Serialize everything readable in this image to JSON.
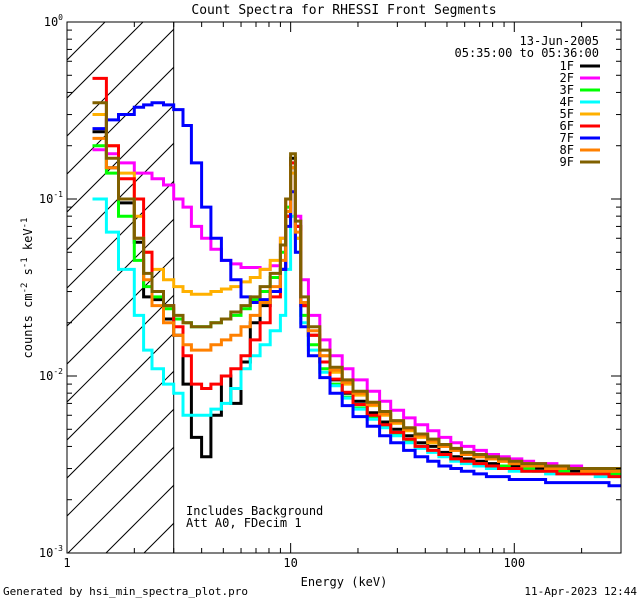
{
  "chart_data": {
    "type": "line",
    "title": "Count Spectra for RHESSI Front Segments",
    "xlabel": "Energy (keV)",
    "ylabel": "counts cm-2 s-1 keV-1",
    "xscale": "log",
    "yscale": "log",
    "xlim": [
      1,
      300
    ],
    "ylim": [
      0.001,
      1.0
    ],
    "x_tick_labels": [
      "1",
      "10",
      "100"
    ],
    "y_tick_labels": [
      {
        "value": 1,
        "base": "10",
        "exp": "0"
      },
      {
        "value": 0.1,
        "base": "10",
        "exp": "-1"
      },
      {
        "value": 0.01,
        "base": "10",
        "exp": "-2"
      },
      {
        "value": 0.001,
        "base": "10",
        "exp": "-3"
      }
    ],
    "date": "13-Jun-2005",
    "time_range": "05:35:00 to 05:36:00",
    "hatched_region_keV": [
      1,
      3
    ],
    "annotations": [
      "Includes Background",
      "Att A0, FDecim 1"
    ],
    "footer_left": "Generated by hsi_min_spectra_plot.pro",
    "footer_right": "11-Apr-2023 12:44",
    "energy_bins_keV": [
      1.3,
      1.5,
      1.7,
      2.0,
      2.2,
      2.4,
      2.7,
      3.0,
      3.3,
      3.6,
      4.0,
      4.4,
      4.9,
      5.4,
      6.0,
      6.6,
      7.3,
      8.1,
      9.0,
      9.5,
      10.0,
      10.5,
      11.1,
      12.0,
      13.5,
      15.0,
      17.0,
      19.0,
      22.0,
      25.0,
      28.0,
      32.0,
      36.0,
      41.0,
      46.0,
      52.0,
      58.0,
      66.0,
      75.0,
      85.0,
      95.0,
      108.0,
      122.0,
      138.0,
      155.0,
      175.0,
      200.0,
      230.0,
      265.0,
      300.0
    ],
    "series": [
      {
        "name": "1F",
        "color": "#000000",
        "values": [
          0.24,
          0.15,
          0.095,
          0.057,
          0.028,
          0.027,
          0.021,
          0.017,
          0.009,
          0.0045,
          0.0035,
          0.006,
          0.01,
          0.007,
          0.012,
          0.02,
          0.025,
          0.03,
          0.04,
          0.08,
          0.17,
          0.07,
          0.025,
          0.017,
          0.012,
          0.0095,
          0.008,
          0.0072,
          0.0062,
          0.0055,
          0.005,
          0.0046,
          0.0042,
          0.004,
          0.0037,
          0.0035,
          0.0034,
          0.0033,
          0.0032,
          0.0031,
          0.0031,
          0.003,
          0.003,
          0.003,
          0.0029,
          0.0029,
          0.0029,
          0.0028,
          0.0028,
          0.0028
        ]
      },
      {
        "name": "2F",
        "color": "#ff00ff",
        "values": [
          0.19,
          0.18,
          0.16,
          0.14,
          0.14,
          0.13,
          0.12,
          0.1,
          0.09,
          0.07,
          0.06,
          0.052,
          0.045,
          0.043,
          0.041,
          0.041,
          0.04,
          0.042,
          0.06,
          0.1,
          0.15,
          0.08,
          0.035,
          0.022,
          0.016,
          0.013,
          0.011,
          0.0095,
          0.0082,
          0.0072,
          0.0064,
          0.0058,
          0.0053,
          0.0049,
          0.0045,
          0.0042,
          0.004,
          0.0038,
          0.0036,
          0.0035,
          0.0034,
          0.0033,
          0.0032,
          0.0032,
          0.0031,
          0.0031,
          0.003,
          0.003,
          0.003,
          0.003
        ]
      },
      {
        "name": "3F",
        "color": "#00ff00",
        "values": [
          0.2,
          0.14,
          0.08,
          0.045,
          0.032,
          0.028,
          0.024,
          0.021,
          0.02,
          0.019,
          0.019,
          0.02,
          0.021,
          0.022,
          0.024,
          0.027,
          0.03,
          0.036,
          0.05,
          0.09,
          0.15,
          0.06,
          0.022,
          0.015,
          0.011,
          0.009,
          0.0076,
          0.0066,
          0.0058,
          0.0052,
          0.0047,
          0.0043,
          0.004,
          0.0038,
          0.0036,
          0.0034,
          0.0033,
          0.0032,
          0.0031,
          0.0031,
          0.003,
          0.003,
          0.0029,
          0.0029,
          0.0029,
          0.0028,
          0.0028,
          0.0028,
          0.0028,
          0.0028
        ]
      },
      {
        "name": "4F",
        "color": "#00ffff",
        "values": [
          0.1,
          0.065,
          0.04,
          0.022,
          0.014,
          0.011,
          0.009,
          0.008,
          0.006,
          0.006,
          0.006,
          0.0065,
          0.007,
          0.0085,
          0.011,
          0.013,
          0.015,
          0.018,
          0.022,
          0.04,
          0.08,
          0.05,
          0.02,
          0.014,
          0.0105,
          0.0088,
          0.0075,
          0.0065,
          0.0057,
          0.0051,
          0.0046,
          0.0042,
          0.0039,
          0.0037,
          0.0035,
          0.0033,
          0.0032,
          0.0031,
          0.003,
          0.003,
          0.0029,
          0.0029,
          0.0029,
          0.0028,
          0.0028,
          0.0028,
          0.0028,
          0.0027,
          0.0027,
          0.0027
        ]
      },
      {
        "name": "5F",
        "color": "#ffb000",
        "values": [
          0.3,
          0.2,
          0.14,
          0.08,
          0.05,
          0.04,
          0.035,
          0.032,
          0.03,
          0.029,
          0.029,
          0.03,
          0.031,
          0.032,
          0.034,
          0.036,
          0.04,
          0.045,
          0.06,
          0.1,
          0.14,
          0.06,
          0.025,
          0.017,
          0.013,
          0.0105,
          0.009,
          0.0078,
          0.0068,
          0.006,
          0.0054,
          0.0049,
          0.0045,
          0.0042,
          0.004,
          0.0038,
          0.0036,
          0.0035,
          0.0034,
          0.0033,
          0.0032,
          0.0032,
          0.0031,
          0.0031,
          0.003,
          0.003,
          0.003,
          0.003,
          0.0029,
          0.0029
        ]
      },
      {
        "name": "6F",
        "color": "#ff0000",
        "values": [
          0.48,
          0.2,
          0.13,
          0.1,
          0.05,
          0.03,
          0.025,
          0.019,
          0.013,
          0.009,
          0.0085,
          0.009,
          0.01,
          0.011,
          0.013,
          0.016,
          0.02,
          0.028,
          0.04,
          0.08,
          0.16,
          0.07,
          0.025,
          0.017,
          0.012,
          0.0096,
          0.0081,
          0.0069,
          0.006,
          0.0053,
          0.0048,
          0.0044,
          0.004,
          0.0038,
          0.0036,
          0.0034,
          0.0033,
          0.0032,
          0.0031,
          0.003,
          0.003,
          0.0029,
          0.0029,
          0.0029,
          0.0028,
          0.0028,
          0.0028,
          0.0028,
          0.0027,
          0.0027
        ]
      },
      {
        "name": "7F",
        "color": "#0000ff",
        "values": [
          0.25,
          0.28,
          0.3,
          0.33,
          0.34,
          0.35,
          0.34,
          0.32,
          0.26,
          0.16,
          0.09,
          0.06,
          0.045,
          0.035,
          0.028,
          0.026,
          0.027,
          0.03,
          0.04,
          0.07,
          0.11,
          0.05,
          0.019,
          0.013,
          0.0098,
          0.008,
          0.0068,
          0.0059,
          0.0052,
          0.0046,
          0.0042,
          0.0038,
          0.0035,
          0.0033,
          0.0031,
          0.003,
          0.0029,
          0.0028,
          0.0027,
          0.0027,
          0.0026,
          0.0026,
          0.0026,
          0.0025,
          0.0025,
          0.0025,
          0.0025,
          0.0025,
          0.0024,
          0.0024
        ]
      },
      {
        "name": "8F",
        "color": "#ff8000",
        "values": [
          0.22,
          0.15,
          0.1,
          0.06,
          0.035,
          0.025,
          0.02,
          0.017,
          0.015,
          0.014,
          0.014,
          0.015,
          0.016,
          0.017,
          0.019,
          0.022,
          0.026,
          0.032,
          0.045,
          0.085,
          0.15,
          0.065,
          0.026,
          0.018,
          0.013,
          0.0108,
          0.0092,
          0.008,
          0.0069,
          0.0061,
          0.0055,
          0.005,
          0.0046,
          0.0043,
          0.004,
          0.0038,
          0.0036,
          0.0035,
          0.0034,
          0.0033,
          0.0032,
          0.0031,
          0.0031,
          0.003,
          0.003,
          0.003,
          0.0029,
          0.0029,
          0.0029,
          0.0029
        ]
      },
      {
        "name": "9F",
        "color": "#806000",
        "values": [
          0.35,
          0.17,
          0.1,
          0.06,
          0.038,
          0.03,
          0.025,
          0.022,
          0.02,
          0.019,
          0.019,
          0.02,
          0.021,
          0.023,
          0.025,
          0.028,
          0.032,
          0.038,
          0.055,
          0.1,
          0.18,
          0.075,
          0.028,
          0.019,
          0.014,
          0.0112,
          0.0095,
          0.0082,
          0.0071,
          0.0063,
          0.0056,
          0.0051,
          0.0047,
          0.0044,
          0.0041,
          0.0039,
          0.0037,
          0.0036,
          0.0035,
          0.0034,
          0.0033,
          0.0032,
          0.0032,
          0.0031,
          0.0031,
          0.003,
          0.003,
          0.003,
          0.003,
          0.0029
        ]
      }
    ]
  }
}
